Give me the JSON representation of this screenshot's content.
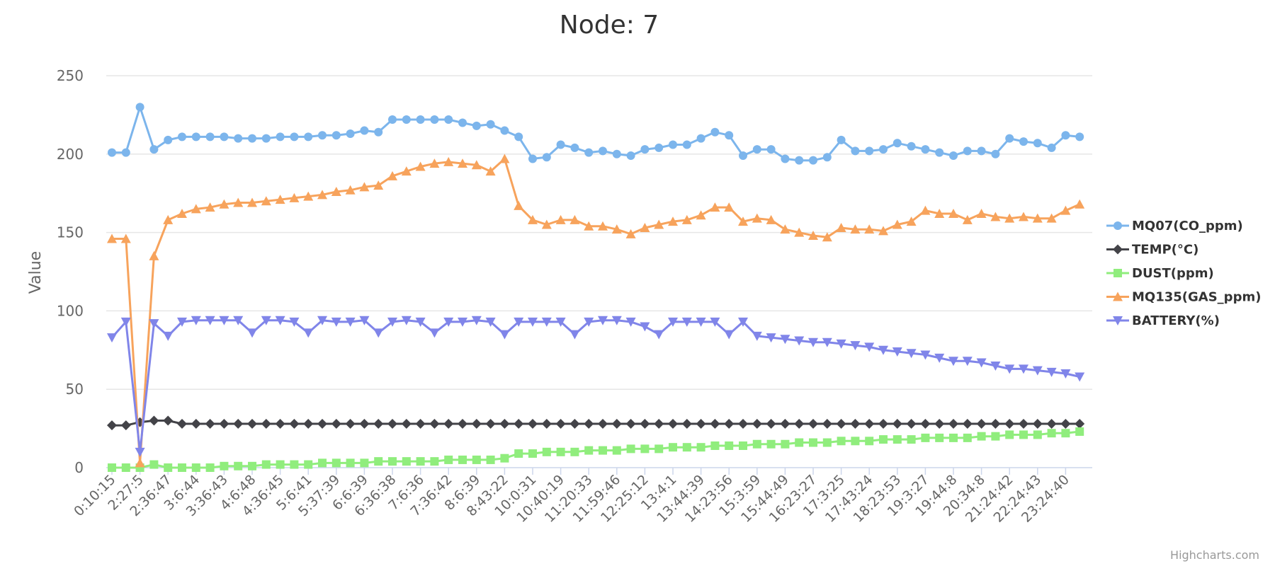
{
  "chart_data": {
    "type": "line",
    "title": "Node: 7",
    "ylabel": "Value",
    "xlabel": "",
    "ylim": [
      0,
      250
    ],
    "yticks": [
      0,
      50,
      100,
      150,
      200,
      250
    ],
    "grid": "horizontal",
    "legend_position": "right",
    "credits": "Highcharts.com",
    "x_tick_labels": [
      "0:10:15",
      "2:27:5",
      "2:36:47",
      "3:6:44",
      "3:36:43",
      "4:6:48",
      "4:36:45",
      "5:6:41",
      "5:37:39",
      "6:6:39",
      "6:36:38",
      "7:6:36",
      "7:36:42",
      "8:6:39",
      "8:43:22",
      "10:0:31",
      "10:40:19",
      "11:20:33",
      "11:59:46",
      "12:25:12",
      "13:4:1",
      "13:44:39",
      "14:23:56",
      "15:3:59",
      "15:44:49",
      "16:23:27",
      "17:3:25",
      "17:43:24",
      "18:23:53",
      "19:3:27",
      "19:44:8",
      "20:34:8",
      "21:24:42",
      "22:24:43",
      "23:24:40"
    ],
    "x_tick_step": 2,
    "series": [
      {
        "name": "MQ07(CO_ppm)",
        "color": "#7cb5ec",
        "marker": "circle",
        "values": [
          201,
          201,
          230,
          203,
          209,
          211,
          211,
          211,
          211,
          210,
          210,
          210,
          211,
          211,
          211,
          212,
          212,
          213,
          215,
          214,
          222,
          222,
          222,
          222,
          222,
          220,
          218,
          219,
          215,
          211,
          197,
          198,
          206,
          204,
          201,
          202,
          200,
          199,
          203,
          204,
          206,
          206,
          210,
          214,
          212,
          199,
          203,
          203,
          197,
          196,
          196,
          198,
          209,
          202,
          202,
          203,
          207,
          205,
          203,
          201,
          199,
          202,
          202,
          200,
          210,
          208,
          207,
          204,
          212,
          211
        ]
      },
      {
        "name": "TEMP(°C)",
        "color": "#434348",
        "marker": "diamond",
        "values": [
          27,
          27,
          29,
          30,
          30,
          28,
          28,
          28,
          28,
          28,
          28,
          28,
          28,
          28,
          28,
          28,
          28,
          28,
          28,
          28,
          28,
          28,
          28,
          28,
          28,
          28,
          28,
          28,
          28,
          28,
          28,
          28,
          28,
          28,
          28,
          28,
          28,
          28,
          28,
          28,
          28,
          28,
          28,
          28,
          28,
          28,
          28,
          28,
          28,
          28,
          28,
          28,
          28,
          28,
          28,
          28,
          28,
          28,
          28,
          28,
          28,
          28,
          28,
          28,
          28,
          28,
          28,
          28,
          28,
          28
        ]
      },
      {
        "name": "DUST(ppm)",
        "color": "#90ed7d",
        "marker": "square",
        "values": [
          0,
          0,
          0,
          2,
          0,
          0,
          0,
          0,
          1,
          1,
          1,
          2,
          2,
          2,
          2,
          3,
          3,
          3,
          3,
          4,
          4,
          4,
          4,
          4,
          5,
          5,
          5,
          5,
          6,
          9,
          9,
          10,
          10,
          10,
          11,
          11,
          11,
          12,
          12,
          12,
          13,
          13,
          13,
          14,
          14,
          14,
          15,
          15,
          15,
          16,
          16,
          16,
          17,
          17,
          17,
          18,
          18,
          18,
          19,
          19,
          19,
          19,
          20,
          20,
          21,
          21,
          21,
          22,
          22,
          23
        ]
      },
      {
        "name": "MQ135(GAS_ppm)",
        "color": "#f7a35c",
        "marker": "triangle",
        "values": [
          146,
          146,
          3,
          135,
          158,
          162,
          165,
          166,
          168,
          169,
          169,
          170,
          171,
          172,
          173,
          174,
          176,
          177,
          179,
          180,
          186,
          189,
          192,
          194,
          195,
          194,
          193,
          189,
          197,
          167,
          158,
          155,
          158,
          158,
          154,
          154,
          152,
          149,
          153,
          155,
          157,
          158,
          161,
          166,
          166,
          157,
          159,
          158,
          152,
          150,
          148,
          147,
          153,
          152,
          152,
          151,
          155,
          157,
          164,
          162,
          162,
          158,
          162,
          160,
          159,
          160,
          159,
          159,
          164,
          168
        ]
      },
      {
        "name": "BATTERY(%)",
        "color": "#8085e9",
        "marker": "triangle-down",
        "values": [
          83,
          93,
          10,
          92,
          84,
          93,
          94,
          94,
          94,
          94,
          86,
          94,
          94,
          93,
          86,
          94,
          93,
          93,
          94,
          86,
          93,
          94,
          93,
          86,
          93,
          93,
          94,
          93,
          85,
          93,
          93,
          93,
          93,
          85,
          93,
          94,
          94,
          93,
          90,
          85,
          93,
          93,
          93,
          93,
          85,
          93,
          84,
          83,
          82,
          81,
          80,
          80,
          79,
          78,
          77,
          75,
          74,
          73,
          72,
          70,
          68,
          68,
          67,
          65,
          63,
          63,
          62,
          61,
          60,
          58
        ]
      }
    ]
  }
}
